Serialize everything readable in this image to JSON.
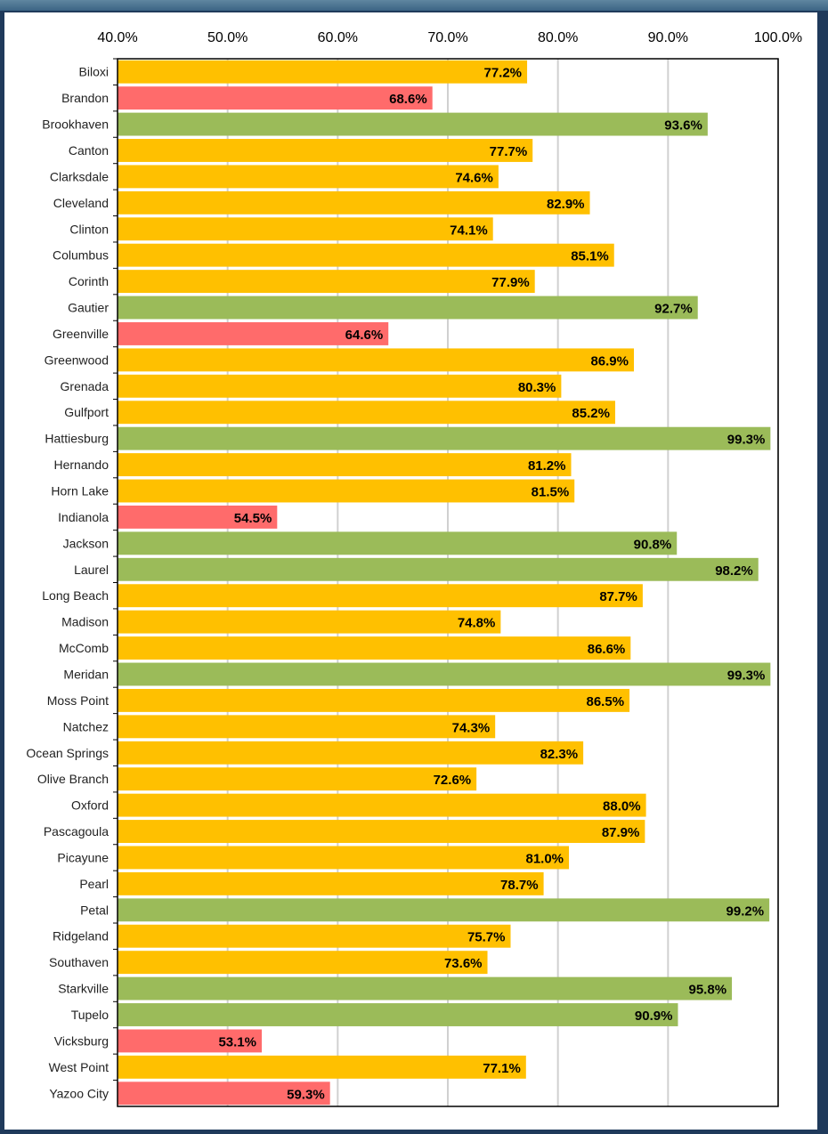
{
  "chart_data": {
    "type": "bar",
    "orientation": "horizontal",
    "xlim": [
      40,
      100
    ],
    "x_ticks": [
      "40.0%",
      "50.0%",
      "60.0%",
      "70.0%",
      "80.0%",
      "90.0%",
      "100.0%"
    ],
    "x_tick_values": [
      40,
      50,
      60,
      70,
      80,
      90,
      100
    ],
    "grid": "vertical",
    "legend": "none",
    "colors": {
      "high": "#9bbb59",
      "mid": "#ffc000",
      "low": "#ff6b6b"
    },
    "bars": [
      {
        "category": "Biloxi",
        "value": 77.2,
        "label": "77.2%",
        "group": "mid"
      },
      {
        "category": "Brandon",
        "value": 68.6,
        "label": "68.6%",
        "group": "low"
      },
      {
        "category": "Brookhaven",
        "value": 93.6,
        "label": "93.6%",
        "group": "high"
      },
      {
        "category": "Canton",
        "value": 77.7,
        "label": "77.7%",
        "group": "mid"
      },
      {
        "category": "Clarksdale",
        "value": 74.6,
        "label": "74.6%",
        "group": "mid"
      },
      {
        "category": "Cleveland",
        "value": 82.9,
        "label": "82.9%",
        "group": "mid"
      },
      {
        "category": "Clinton",
        "value": 74.1,
        "label": "74.1%",
        "group": "mid"
      },
      {
        "category": "Columbus",
        "value": 85.1,
        "label": "85.1%",
        "group": "mid"
      },
      {
        "category": "Corinth",
        "value": 77.9,
        "label": "77.9%",
        "group": "mid"
      },
      {
        "category": "Gautier",
        "value": 92.7,
        "label": "92.7%",
        "group": "high"
      },
      {
        "category": "Greenville",
        "value": 64.6,
        "label": "64.6%",
        "group": "low"
      },
      {
        "category": "Greenwood",
        "value": 86.9,
        "label": "86.9%",
        "group": "mid"
      },
      {
        "category": "Grenada",
        "value": 80.3,
        "label": "80.3%",
        "group": "mid"
      },
      {
        "category": "Gulfport",
        "value": 85.2,
        "label": "85.2%",
        "group": "mid"
      },
      {
        "category": "Hattiesburg",
        "value": 99.3,
        "label": "99.3%",
        "group": "high"
      },
      {
        "category": "Hernando",
        "value": 81.2,
        "label": "81.2%",
        "group": "mid"
      },
      {
        "category": "Horn Lake",
        "value": 81.5,
        "label": "81.5%",
        "group": "mid"
      },
      {
        "category": "Indianola",
        "value": 54.5,
        "label": "54.5%",
        "group": "low"
      },
      {
        "category": "Jackson",
        "value": 90.8,
        "label": "90.8%",
        "group": "high"
      },
      {
        "category": "Laurel",
        "value": 98.2,
        "label": "98.2%",
        "group": "high"
      },
      {
        "category": "Long Beach",
        "value": 87.7,
        "label": "87.7%",
        "group": "mid"
      },
      {
        "category": "Madison",
        "value": 74.8,
        "label": "74.8%",
        "group": "mid"
      },
      {
        "category": "McComb",
        "value": 86.6,
        "label": "86.6%",
        "group": "mid"
      },
      {
        "category": "Meridan",
        "value": 99.3,
        "label": "99.3%",
        "group": "high"
      },
      {
        "category": "Moss Point",
        "value": 86.5,
        "label": "86.5%",
        "group": "mid"
      },
      {
        "category": "Natchez",
        "value": 74.3,
        "label": "74.3%",
        "group": "mid"
      },
      {
        "category": "Ocean Springs",
        "value": 82.3,
        "label": "82.3%",
        "group": "mid"
      },
      {
        "category": "Olive Branch",
        "value": 72.6,
        "label": "72.6%",
        "group": "mid"
      },
      {
        "category": "Oxford",
        "value": 88.0,
        "label": "88.0%",
        "group": "mid"
      },
      {
        "category": "Pascagoula",
        "value": 87.9,
        "label": "87.9%",
        "group": "mid"
      },
      {
        "category": "Picayune",
        "value": 81.0,
        "label": "81.0%",
        "group": "mid"
      },
      {
        "category": "Pearl",
        "value": 78.7,
        "label": "78.7%",
        "group": "mid"
      },
      {
        "category": "Petal",
        "value": 99.2,
        "label": "99.2%",
        "group": "high"
      },
      {
        "category": "Ridgeland",
        "value": 75.7,
        "label": "75.7%",
        "group": "mid"
      },
      {
        "category": "Southaven",
        "value": 73.6,
        "label": "73.6%",
        "group": "mid"
      },
      {
        "category": "Starkville",
        "value": 95.8,
        "label": "95.8%",
        "group": "high"
      },
      {
        "category": "Tupelo",
        "value": 90.9,
        "label": "90.9%",
        "group": "high"
      },
      {
        "category": "Vicksburg",
        "value": 53.1,
        "label": "53.1%",
        "group": "low"
      },
      {
        "category": "West Point",
        "value": 77.1,
        "label": "77.1%",
        "group": "mid"
      },
      {
        "category": "Yazoo City",
        "value": 59.3,
        "label": "59.3%",
        "group": "low"
      }
    ]
  }
}
